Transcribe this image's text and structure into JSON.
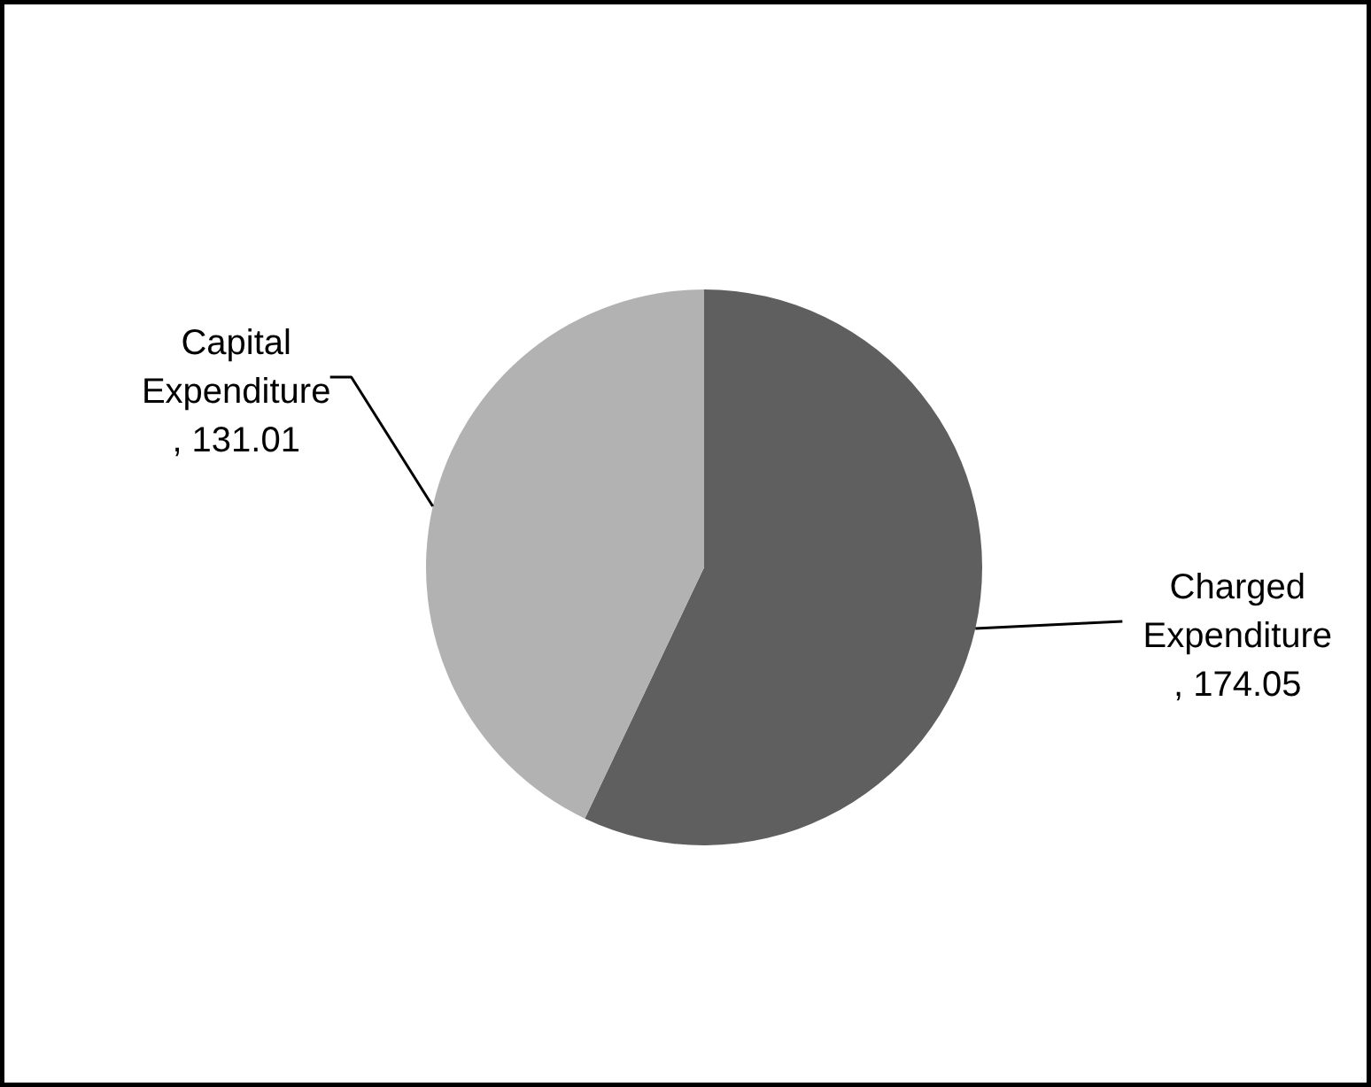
{
  "chart_data": {
    "type": "pie",
    "categories": [
      "Charged Expenditure",
      "Capital Expenditure"
    ],
    "values": [
      174.05,
      131.01
    ],
    "colors": [
      "#5f5f5f",
      "#b2b2b2"
    ],
    "value_labels": [
      ", 174.05",
      ", 131.01"
    ]
  }
}
